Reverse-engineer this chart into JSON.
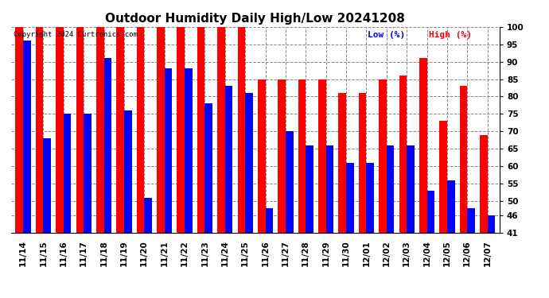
{
  "title": "Outdoor Humidity Daily High/Low 20241208",
  "copyright": "Copyright 2024 Curtronics.com",
  "legend_low": "Low (%)",
  "legend_high": "High (%)",
  "ylim": [
    41,
    100
  ],
  "yticks": [
    41,
    46,
    50,
    55,
    60,
    65,
    70,
    75,
    80,
    85,
    90,
    95,
    100
  ],
  "dates": [
    "11/14",
    "11/15",
    "11/16",
    "11/17",
    "11/18",
    "11/19",
    "11/20",
    "11/21",
    "11/22",
    "11/23",
    "11/24",
    "11/25",
    "11/26",
    "11/27",
    "11/28",
    "11/29",
    "11/30",
    "12/01",
    "12/02",
    "12/03",
    "12/04",
    "12/05",
    "12/06",
    "12/07"
  ],
  "high": [
    100,
    100,
    100,
    100,
    100,
    100,
    100,
    100,
    100,
    100,
    100,
    100,
    85,
    85,
    85,
    85,
    81,
    81,
    85,
    86,
    91,
    73,
    83,
    69
  ],
  "low": [
    96,
    68,
    75,
    75,
    91,
    76,
    51,
    88,
    88,
    78,
    83,
    81,
    48,
    70,
    66,
    66,
    61,
    61,
    66,
    66,
    53,
    56,
    48,
    46
  ],
  "bar_color_high": "#ff0000",
  "bar_color_low": "#0000ff",
  "background_color": "#ffffff",
  "grid_color": "#888888",
  "title_fontsize": 11,
  "tick_fontsize": 7.5,
  "bar_width": 0.38,
  "fig_width": 6.9,
  "fig_height": 3.75,
  "dpi": 100
}
